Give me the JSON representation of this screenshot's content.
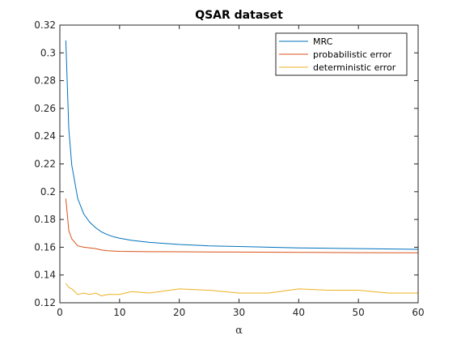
{
  "chart_data": {
    "type": "line",
    "title": "QSAR dataset",
    "xlabel": "α",
    "ylabel": "",
    "xlim": [
      0,
      60
    ],
    "ylim": [
      0.12,
      0.32
    ],
    "xticks": [
      0,
      10,
      20,
      30,
      40,
      50,
      60
    ],
    "yticks": [
      0.12,
      0.14,
      0.16,
      0.18,
      0.2,
      0.22,
      0.24,
      0.26,
      0.28,
      0.3,
      0.32
    ],
    "grid": false,
    "legend_position": "top-right",
    "series": [
      {
        "name": "MRC",
        "color": "#0072BD",
        "x": [
          1,
          1.5,
          2,
          3,
          4,
          5,
          6,
          7,
          8,
          9,
          10,
          12,
          15,
          20,
          25,
          30,
          40,
          50,
          60
        ],
        "y": [
          0.309,
          0.245,
          0.219,
          0.195,
          0.184,
          0.178,
          0.174,
          0.171,
          0.169,
          0.1675,
          0.1665,
          0.165,
          0.1635,
          0.162,
          0.161,
          0.1605,
          0.1595,
          0.159,
          0.1585
        ]
      },
      {
        "name": "probabilistic error",
        "color": "#D95319",
        "x": [
          1,
          1.5,
          2,
          3,
          4,
          5,
          6,
          7,
          8,
          10,
          15,
          20,
          30,
          40,
          50,
          60
        ],
        "y": [
          0.195,
          0.172,
          0.166,
          0.161,
          0.16,
          0.1595,
          0.159,
          0.158,
          0.1575,
          0.157,
          0.1568,
          0.1567,
          0.1565,
          0.1563,
          0.1561,
          0.156
        ]
      },
      {
        "name": "deterministic error",
        "color": "#EDB120",
        "x": [
          1,
          1.5,
          2,
          3,
          4,
          5,
          6,
          7,
          8,
          9,
          10,
          12,
          15,
          20,
          25,
          30,
          35,
          40,
          45,
          50,
          55,
          60
        ],
        "y": [
          0.134,
          0.131,
          0.13,
          0.126,
          0.127,
          0.126,
          0.127,
          0.125,
          0.126,
          0.126,
          0.126,
          0.128,
          0.127,
          0.13,
          0.129,
          0.127,
          0.127,
          0.13,
          0.129,
          0.129,
          0.127,
          0.127
        ]
      }
    ]
  }
}
